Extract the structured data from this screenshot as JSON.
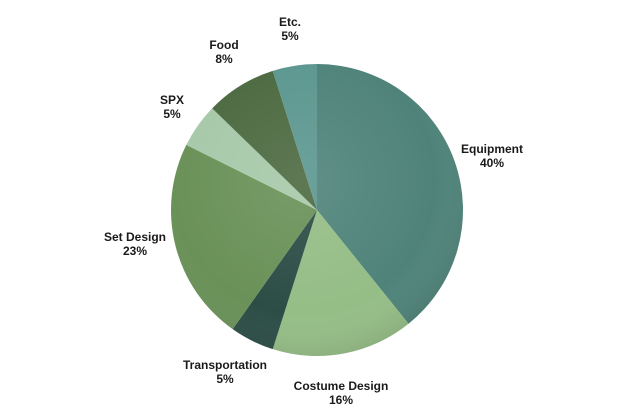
{
  "chart_data": {
    "type": "pie",
    "title": "",
    "slices": [
      {
        "label": "Equipment",
        "percent_label": "40%",
        "value": 40,
        "color": "#4f8379"
      },
      {
        "label": "Costume Design",
        "percent_label": "16%",
        "value": 16,
        "color": "#95bd86"
      },
      {
        "label": "Transportation",
        "percent_label": "5%",
        "value": 5,
        "color": "#2c4d46"
      },
      {
        "label": "Set Design",
        "percent_label": "23%",
        "value": 23,
        "color": "#6a9158"
      },
      {
        "label": "SPX",
        "percent_label": "5%",
        "value": 5,
        "color": "#a7c9a9"
      },
      {
        "label": "Food",
        "percent_label": "8%",
        "value": 8,
        "color": "#4c6a41"
      },
      {
        "label": "Etc.",
        "percent_label": "5%",
        "value": 5,
        "color": "#5c9790"
      }
    ],
    "legend": "none",
    "start": "top",
    "direction": "clockwise"
  }
}
